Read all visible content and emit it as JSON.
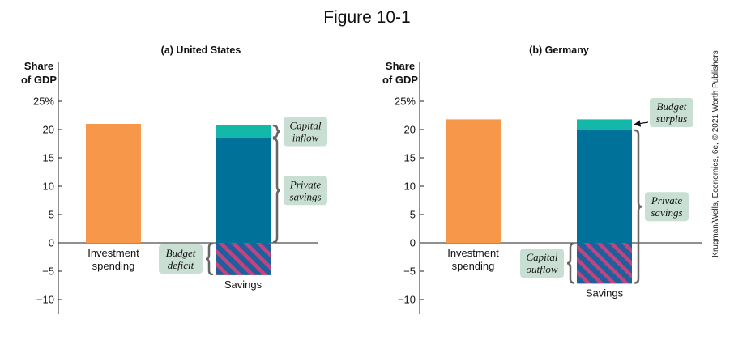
{
  "figure_title": "Figure 10-1",
  "credit": "Krugman/Wells, Economics, 6e, © 2021 Worth Publishers",
  "colors": {
    "investment": "#f7974a",
    "private_savings": "#00729a",
    "capital_flow": "#14b8a8",
    "budget_surplus": "#14b8a8",
    "hatch_stripe": "#c0457e",
    "hatch_base": "#1f5f9e",
    "label_box": "#c9dfd3",
    "bracket": "#666666"
  },
  "chart_data": [
    {
      "type": "bar",
      "title": "(a) United States",
      "ylabel_line1": "Share",
      "ylabel_line2": "of GDP",
      "ylim": [
        -11,
        32
      ],
      "yticks": [
        -10,
        -5,
        0,
        5,
        10,
        15,
        20,
        25
      ],
      "ytick_labels": [
        "−10",
        "−5",
        "0",
        "5",
        "10",
        "15",
        "20",
        "25%"
      ],
      "grid": false,
      "categories": [
        "Investment spending",
        "Savings"
      ],
      "category_labels": [
        [
          "Investment",
          "spending"
        ],
        [
          "Savings"
        ]
      ],
      "investment": 21,
      "savings_stack": [
        {
          "component": "private_savings",
          "from": 0,
          "to": 18.5
        },
        {
          "component": "capital_flow",
          "from": 18.5,
          "to": 20.8
        },
        {
          "component": "budget_deficit",
          "from": -5.7,
          "to": 0
        }
      ],
      "annotations": [
        {
          "lines": [
            "Capital",
            "inflow"
          ],
          "from": 18.5,
          "to": 20.8,
          "side": "right"
        },
        {
          "lines": [
            "Private",
            "savings"
          ],
          "from": 0,
          "to": 18.5,
          "side": "right"
        },
        {
          "lines": [
            "Budget",
            "deficit"
          ],
          "from": -5.7,
          "to": 0,
          "side": "left"
        }
      ]
    },
    {
      "type": "bar",
      "title": "(b) Germany",
      "ylabel_line1": "Share",
      "ylabel_line2": "of GDP",
      "ylim": [
        -11,
        32
      ],
      "yticks": [
        -10,
        -5,
        0,
        5,
        10,
        15,
        20,
        25
      ],
      "ytick_labels": [
        "−10",
        "−5",
        "0",
        "5",
        "10",
        "15",
        "20",
        "25%"
      ],
      "grid": false,
      "categories": [
        "Investment spending",
        "Savings"
      ],
      "category_labels": [
        [
          "Investment",
          "spending"
        ],
        [
          "Savings"
        ]
      ],
      "investment": 21.8,
      "savings_stack": [
        {
          "component": "private_savings",
          "from": 0,
          "to": 20
        },
        {
          "component": "budget_surplus",
          "from": 20,
          "to": 21.8
        },
        {
          "component": "capital_outflow",
          "from": -7.2,
          "to": 0
        }
      ],
      "annotations": [
        {
          "lines": [
            "Budget",
            "surplus"
          ],
          "from": 20,
          "to": 21.8,
          "side": "right-arrow"
        },
        {
          "lines": [
            "Private",
            "savings"
          ],
          "from": -7.2,
          "to": 20,
          "side": "right"
        },
        {
          "lines": [
            "Capital",
            "outflow"
          ],
          "from": -7.2,
          "to": 0,
          "side": "left"
        }
      ]
    }
  ]
}
